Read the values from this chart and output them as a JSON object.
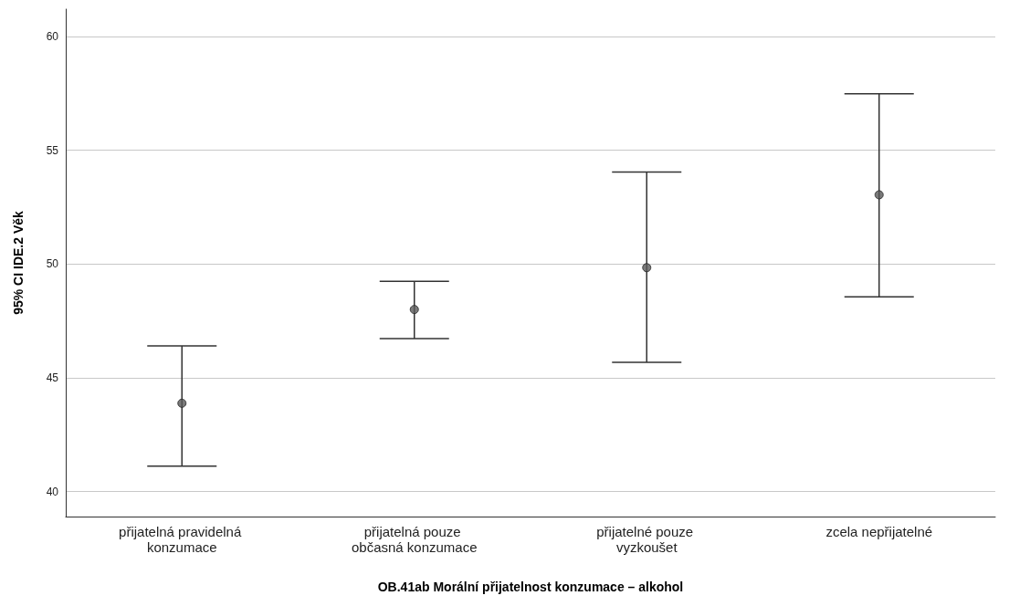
{
  "chart_data": {
    "type": "scatter",
    "xlabel": "OB.41ab Morální přijatelnost konzumace – alkohol",
    "ylabel": "95% CI IDE.2 Věk",
    "categories": [
      "přijatelná pravidelná konzumace",
      "přijatelná pouze občasná konzumace",
      "přijatelné pouze vyzkoušet",
      "zcela nepřijatelné"
    ],
    "values": [
      43.88,
      48.0,
      49.84,
      53.04
    ],
    "errors": [
      [
        41.12,
        46.4
      ],
      [
        46.72,
        49.24
      ],
      [
        45.68,
        54.04
      ],
      [
        48.56,
        57.48
      ]
    ],
    "color": "#595959",
    "marker": "circle",
    "grid": "y",
    "ylim": [
      38.9,
      61.2
    ],
    "yticks": [
      40,
      45,
      50,
      55,
      60
    ]
  }
}
